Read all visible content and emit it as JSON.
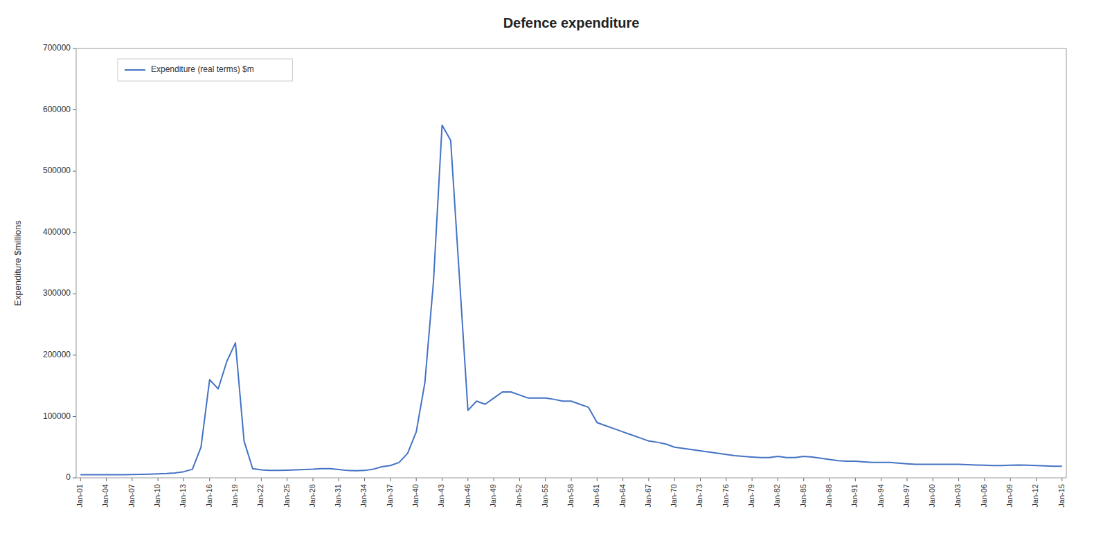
{
  "chart_data": {
    "type": "line",
    "title": "Defence expenditure",
    "ylabel": "Expenditure $millions",
    "x": [
      1901,
      1902,
      1903,
      1904,
      1905,
      1906,
      1907,
      1908,
      1909,
      1910,
      1911,
      1912,
      1913,
      1914,
      1915,
      1916,
      1917,
      1918,
      1919,
      1920,
      1921,
      1922,
      1923,
      1924,
      1925,
      1926,
      1927,
      1928,
      1929,
      1930,
      1931,
      1932,
      1933,
      1934,
      1935,
      1936,
      1937,
      1938,
      1939,
      1940,
      1941,
      1942,
      1943,
      1944,
      1945,
      1946,
      1947,
      1948,
      1949,
      1950,
      1951,
      1952,
      1953,
      1954,
      1955,
      1956,
      1957,
      1958,
      1959,
      1960,
      1961,
      1962,
      1963,
      1964,
      1965,
      1966,
      1967,
      1968,
      1969,
      1970,
      1971,
      1972,
      1973,
      1974,
      1975,
      1976,
      1977,
      1978,
      1979,
      1980,
      1981,
      1982,
      1983,
      1984,
      1985,
      1986,
      1987,
      1988,
      1989,
      1990,
      1991,
      1992,
      1993,
      1994,
      1995,
      1996,
      1997,
      1998,
      1999,
      2000,
      2001,
      2002,
      2003,
      2004,
      2005,
      2006,
      2007,
      2008,
      2009,
      2010,
      2011,
      2012,
      2013,
      2014,
      2015
    ],
    "series": [
      {
        "name": "Expenditure (real terms) $m",
        "color": "#4472C4",
        "values": [
          5000,
          5000,
          5000,
          5200,
          5200,
          5200,
          5500,
          5700,
          6000,
          6500,
          7000,
          8000,
          10000,
          14000,
          50000,
          160000,
          145000,
          190000,
          220000,
          60000,
          15000,
          13000,
          12000,
          12000,
          12500,
          13000,
          13500,
          14000,
          15000,
          15000,
          13500,
          12000,
          11500,
          12000,
          14000,
          18000,
          20000,
          25000,
          40000,
          75000,
          155000,
          320000,
          575000,
          550000,
          330000,
          110000,
          125000,
          120000,
          130000,
          140000,
          140000,
          135000,
          130000,
          130000,
          130000,
          128000,
          125000,
          125000,
          120000,
          115000,
          90000,
          85000,
          80000,
          75000,
          70000,
          65000,
          60000,
          58000,
          55000,
          50000,
          48000,
          46000,
          44000,
          42000,
          40000,
          38000,
          36000,
          35000,
          34000,
          33000,
          33000,
          35000,
          33000,
          33000,
          35000,
          34000,
          32000,
          30000,
          28000,
          27000,
          27000,
          26000,
          25000,
          25000,
          25000,
          24000,
          23000,
          22000,
          22000,
          22000,
          22000,
          22000,
          22000,
          21500,
          21000,
          20500,
          20000,
          20000,
          20500,
          21000,
          20500,
          20000,
          19500,
          19000,
          19000
        ]
      }
    ],
    "xlim": [
      1900.5,
      2015.5
    ],
    "xticks": [
      {
        "value": 1901,
        "label": "Jan-01"
      },
      {
        "value": 1904,
        "label": "Jan-04"
      },
      {
        "value": 1907,
        "label": "Jan-07"
      },
      {
        "value": 1910,
        "label": "Jan-10"
      },
      {
        "value": 1913,
        "label": "Jan-13"
      },
      {
        "value": 1916,
        "label": "Jan-16"
      },
      {
        "value": 1919,
        "label": "Jan-19"
      },
      {
        "value": 1922,
        "label": "Jan-22"
      },
      {
        "value": 1925,
        "label": "Jan-25"
      },
      {
        "value": 1928,
        "label": "Jan-28"
      },
      {
        "value": 1931,
        "label": "Jan-31"
      },
      {
        "value": 1934,
        "label": "Jan-34"
      },
      {
        "value": 1937,
        "label": "Jan-37"
      },
      {
        "value": 1940,
        "label": "Jan-40"
      },
      {
        "value": 1943,
        "label": "Jan-43"
      },
      {
        "value": 1946,
        "label": "Jan-46"
      },
      {
        "value": 1949,
        "label": "Jan-49"
      },
      {
        "value": 1952,
        "label": "Jan-52"
      },
      {
        "value": 1955,
        "label": "Jan-55"
      },
      {
        "value": 1958,
        "label": "Jan-58"
      },
      {
        "value": 1961,
        "label": "Jan-61"
      },
      {
        "value": 1964,
        "label": "Jan-64"
      },
      {
        "value": 1967,
        "label": "Jan-67"
      },
      {
        "value": 1970,
        "label": "Jan-70"
      },
      {
        "value": 1973,
        "label": "Jan-73"
      },
      {
        "value": 1976,
        "label": "Jan-76"
      },
      {
        "value": 1979,
        "label": "Jan-79"
      },
      {
        "value": 1982,
        "label": "Jan-82"
      },
      {
        "value": 1985,
        "label": "Jan-85"
      },
      {
        "value": 1988,
        "label": "Jan-88"
      },
      {
        "value": 1991,
        "label": "Jan-91"
      },
      {
        "value": 1994,
        "label": "Jan-94"
      },
      {
        "value": 1997,
        "label": "Jan-97"
      },
      {
        "value": 2000,
        "label": "Jan-00"
      },
      {
        "value": 2003,
        "label": "Jan-03"
      },
      {
        "value": 2006,
        "label": "Jan-06"
      },
      {
        "value": 2009,
        "label": "Jan-09"
      },
      {
        "value": 2012,
        "label": "Jan-12"
      },
      {
        "value": 2015,
        "label": "Jan-15"
      }
    ],
    "ylim": [
      0,
      700000
    ],
    "yticks": [
      0,
      100000,
      200000,
      300000,
      400000,
      500000,
      600000,
      700000
    ],
    "grid": false,
    "legend": "upper left"
  }
}
